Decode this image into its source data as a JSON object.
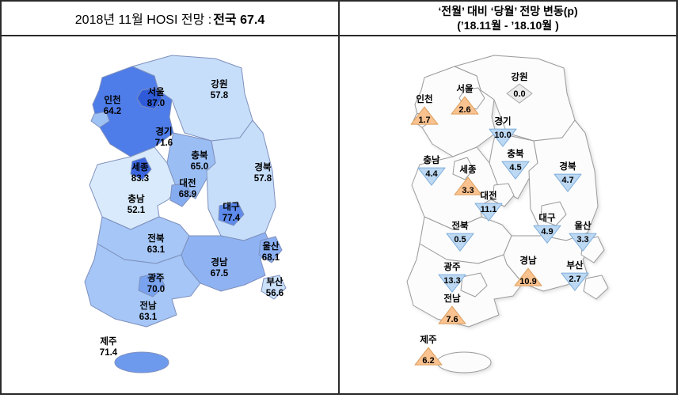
{
  "header": {
    "left": {
      "text": "2018년 11월 HOSI 전망 : ",
      "strong": "전국 67.4"
    },
    "right": {
      "line1": "‘전월’ 대비 ‘당월’ 전망 변동(p)",
      "line2": "(’18.11월 - ’18.10월 )"
    }
  },
  "chart_data": [
    {
      "type": "choropleth_map",
      "title": "2018년 11월 HOSI 전망",
      "national_label": "전국",
      "national_value": 67.4,
      "border_color": "#7E90BD",
      "regions": [
        {
          "id": "seoul",
          "name": "서울",
          "value": 87.0,
          "color": "#2F5BD9"
        },
        {
          "id": "incheon",
          "name": "인천",
          "value": 64.2,
          "color": "#9FC2F5"
        },
        {
          "id": "gyeonggi",
          "name": "경기",
          "value": 71.6,
          "color": "#4E7CE8"
        },
        {
          "id": "gangwon",
          "name": "강원",
          "value": 57.8,
          "color": "#C6DEFA"
        },
        {
          "id": "chungbuk",
          "name": "충북",
          "value": 65.0,
          "color": "#9ABEF4"
        },
        {
          "id": "chungnam",
          "name": "충남",
          "value": 52.1,
          "color": "#D8EAFC"
        },
        {
          "id": "sejong",
          "name": "세종",
          "value": 83.3,
          "color": "#3B66DF"
        },
        {
          "id": "daejeon",
          "name": "대전",
          "value": 68.9,
          "color": "#86ACF0"
        },
        {
          "id": "gyeongbuk",
          "name": "경북",
          "value": 57.8,
          "color": "#C6DEFA"
        },
        {
          "id": "daegu",
          "name": "대구",
          "value": 77.4,
          "color": "#5E8BEB"
        },
        {
          "id": "jeonbuk",
          "name": "전북",
          "value": 63.1,
          "color": "#A5C6F6"
        },
        {
          "id": "gyeongnam",
          "name": "경남",
          "value": 67.5,
          "color": "#8FB3F2"
        },
        {
          "id": "ulsan",
          "name": "울산",
          "value": 68.1,
          "color": "#8AAFF1"
        },
        {
          "id": "gwangju",
          "name": "광주",
          "value": 70.0,
          "color": "#79A2EF"
        },
        {
          "id": "busan",
          "name": "부산",
          "value": 56.6,
          "color": "#CBE1FA"
        },
        {
          "id": "jeonnam",
          "name": "전남",
          "value": 63.1,
          "color": "#A5C6F6"
        },
        {
          "id": "jeju",
          "name": "제주",
          "value": 71.4,
          "color": "#6E9AEE"
        }
      ]
    },
    {
      "type": "symbol_map",
      "title": "‘전월’ 대비 ‘당월’ 전망 변동(p)",
      "period": "’18.11월 - ’18.10월",
      "marker_styles": {
        "up": {
          "fill": "#FAC28F",
          "stroke": "#DC9E5E"
        },
        "down": {
          "fill": "#BCD8F2",
          "stroke": "#7FAEDC"
        },
        "flat": {
          "fill": "#ECECEC",
          "stroke": "#ABABAB"
        }
      },
      "regions": [
        {
          "id": "gangwon",
          "name": "강원",
          "value": 0.0,
          "direction": "flat"
        },
        {
          "id": "seoul",
          "name": "서울",
          "value": 2.6,
          "direction": "up"
        },
        {
          "id": "incheon",
          "name": "인천",
          "value": 1.7,
          "direction": "up"
        },
        {
          "id": "gyeonggi",
          "name": "경기",
          "value": 10.0,
          "direction": "down"
        },
        {
          "id": "chungbuk",
          "name": "충북",
          "value": 4.5,
          "direction": "down"
        },
        {
          "id": "chungnam",
          "name": "충남",
          "value": 4.4,
          "direction": "down"
        },
        {
          "id": "sejong",
          "name": "세종",
          "value": 3.3,
          "direction": "up"
        },
        {
          "id": "gyeongbuk",
          "name": "경북",
          "value": 4.7,
          "direction": "down"
        },
        {
          "id": "daejeon",
          "name": "대전",
          "value": 11.1,
          "direction": "down"
        },
        {
          "id": "jeonbuk",
          "name": "전북",
          "value": 0.5,
          "direction": "down"
        },
        {
          "id": "daegu",
          "name": "대구",
          "value": 4.9,
          "direction": "down"
        },
        {
          "id": "ulsan",
          "name": "울산",
          "value": 3.3,
          "direction": "down"
        },
        {
          "id": "gyeongnam",
          "name": "경남",
          "value": 10.9,
          "direction": "up"
        },
        {
          "id": "busan",
          "name": "부산",
          "value": 2.7,
          "direction": "down"
        },
        {
          "id": "gwangju",
          "name": "광주",
          "value": 13.3,
          "direction": "down"
        },
        {
          "id": "jeonnam",
          "name": "전남",
          "value": 7.6,
          "direction": "up"
        },
        {
          "id": "jeju",
          "name": "제주",
          "value": 6.2,
          "direction": "up"
        }
      ]
    }
  ]
}
